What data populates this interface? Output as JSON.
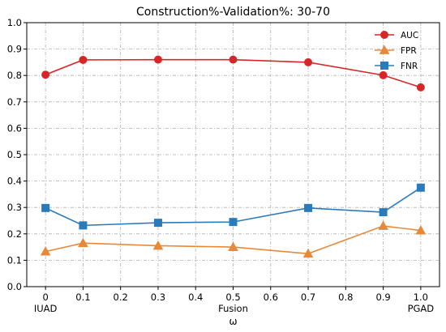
{
  "chart_data": {
    "type": "line",
    "title": "Construction%-Validation%: 30-70",
    "xlabel": "ω",
    "ylabel": "",
    "xlim": [
      -0.05,
      1.05
    ],
    "ylim": [
      0.0,
      1.0
    ],
    "x": [
      0,
      0.1,
      0.3,
      0.5,
      0.7,
      0.9,
      1.0
    ],
    "xticks": [
      0,
      0.1,
      0.2,
      0.3,
      0.4,
      0.5,
      0.6,
      0.7,
      0.8,
      0.9,
      1.0
    ],
    "xtick_labels": [
      "0",
      "0.1",
      "0.2",
      "0.3",
      "0.4",
      "0.5",
      "0.6",
      "0.7",
      "0.8",
      "0.9",
      "1.0"
    ],
    "yticks": [
      0.0,
      0.1,
      0.2,
      0.3,
      0.4,
      0.5,
      0.6,
      0.7,
      0.8,
      0.9,
      1.0
    ],
    "ytick_labels": [
      "0.0",
      "0.1",
      "0.2",
      "0.3",
      "0.4",
      "0.5",
      "0.6",
      "0.7",
      "0.8",
      "0.9",
      "1.0"
    ],
    "annotations": [
      {
        "x": 0,
        "text": "IUAD"
      },
      {
        "x": 0.5,
        "text": "Fusion"
      },
      {
        "x": 1.0,
        "text": "PGAD"
      }
    ],
    "grid": true,
    "legend_position": "top-right",
    "series": [
      {
        "name": "AUC",
        "color": "#d62728",
        "marker": "circle",
        "values": [
          0.803,
          0.859,
          0.86,
          0.86,
          0.85,
          0.801,
          0.755
        ]
      },
      {
        "name": "FPR",
        "color": "#e8893a",
        "marker": "triangle",
        "values": [
          0.133,
          0.165,
          0.155,
          0.15,
          0.125,
          0.23,
          0.213
        ]
      },
      {
        "name": "FNR",
        "color": "#2b7bba",
        "marker": "square",
        "values": [
          0.298,
          0.232,
          0.242,
          0.245,
          0.298,
          0.282,
          0.375
        ]
      }
    ]
  }
}
